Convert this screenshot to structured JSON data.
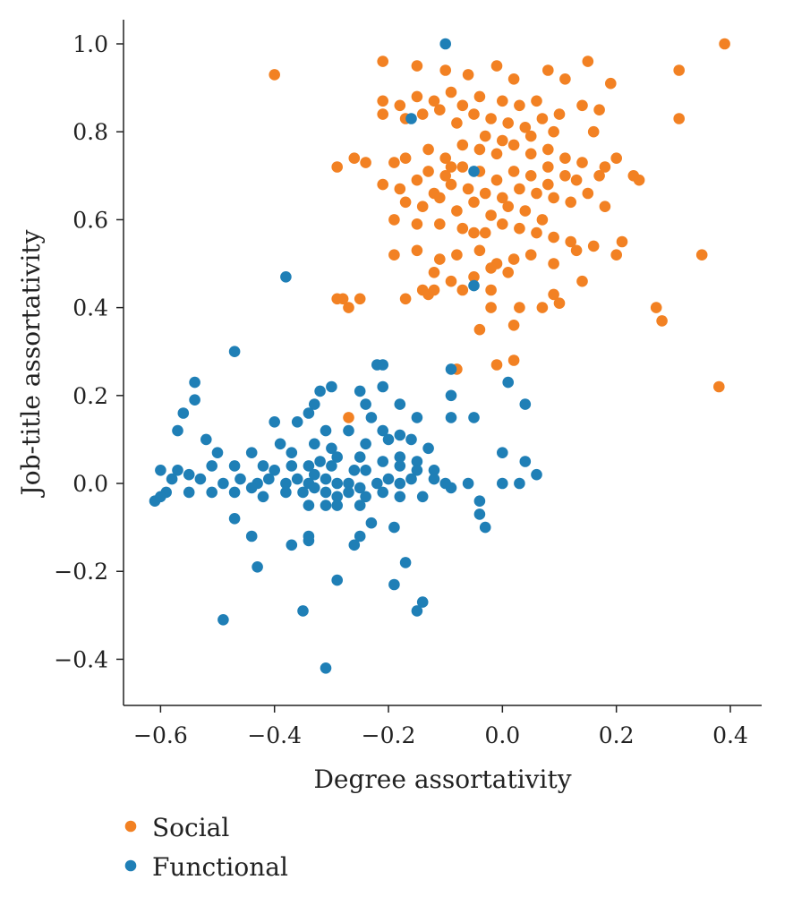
{
  "chart_data": {
    "type": "scatter",
    "title": "",
    "xlabel": "Degree assortativity",
    "ylabel": "Job-title assortativity",
    "xlim": [
      -0.665,
      0.455
    ],
    "ylim": [
      -0.505,
      1.055
    ],
    "xticks": [
      -0.6,
      -0.4,
      -0.2,
      0.0,
      0.2,
      0.4
    ],
    "xtick_labels": [
      "−0.6",
      "−0.4",
      "−0.2",
      "0.0",
      "0.2",
      "0.4"
    ],
    "yticks": [
      -0.4,
      -0.2,
      0.0,
      0.2,
      0.4,
      0.6,
      0.8,
      1.0
    ],
    "ytick_labels": [
      "−0.4",
      "−0.2",
      "0.0",
      "0.2",
      "0.4",
      "0.6",
      "0.8",
      "1.0"
    ],
    "grid": false,
    "legend_position": "below-left",
    "series": [
      {
        "name": "Social",
        "color": "#F28123",
        "points": [
          [
            0.39,
            1.0
          ],
          [
            -0.4,
            0.93
          ],
          [
            -0.21,
            0.96
          ],
          [
            0.31,
            0.94
          ],
          [
            -0.15,
            0.95
          ],
          [
            -0.1,
            0.94
          ],
          [
            -0.06,
            0.93
          ],
          [
            -0.01,
            0.95
          ],
          [
            0.02,
            0.92
          ],
          [
            0.08,
            0.94
          ],
          [
            0.11,
            0.92
          ],
          [
            0.15,
            0.96
          ],
          [
            0.19,
            0.91
          ],
          [
            -0.21,
            0.87
          ],
          [
            -0.18,
            0.86
          ],
          [
            -0.15,
            0.88
          ],
          [
            -0.12,
            0.87
          ],
          [
            -0.09,
            0.89
          ],
          [
            -0.07,
            0.86
          ],
          [
            -0.04,
            0.88
          ],
          [
            0.0,
            0.87
          ],
          [
            0.03,
            0.86
          ],
          [
            0.06,
            0.87
          ],
          [
            0.1,
            0.84
          ],
          [
            0.14,
            0.86
          ],
          [
            0.17,
            0.85
          ],
          [
            0.31,
            0.83
          ],
          [
            -0.21,
            0.84
          ],
          [
            -0.17,
            0.83
          ],
          [
            -0.14,
            0.84
          ],
          [
            -0.11,
            0.85
          ],
          [
            -0.08,
            0.82
          ],
          [
            -0.05,
            0.84
          ],
          [
            -0.02,
            0.83
          ],
          [
            0.01,
            0.82
          ],
          [
            0.04,
            0.81
          ],
          [
            0.07,
            0.83
          ],
          [
            0.09,
            0.8
          ],
          [
            -0.03,
            0.79
          ],
          [
            0.0,
            0.78
          ],
          [
            0.05,
            0.79
          ],
          [
            0.16,
            0.8
          ],
          [
            -0.13,
            0.76
          ],
          [
            -0.1,
            0.74
          ],
          [
            -0.07,
            0.77
          ],
          [
            -0.04,
            0.76
          ],
          [
            -0.01,
            0.75
          ],
          [
            0.02,
            0.77
          ],
          [
            0.05,
            0.75
          ],
          [
            0.08,
            0.76
          ],
          [
            0.11,
            0.74
          ],
          [
            0.14,
            0.73
          ],
          [
            0.18,
            0.72
          ],
          [
            0.2,
            0.74
          ],
          [
            -0.26,
            0.74
          ],
          [
            -0.24,
            0.73
          ],
          [
            -0.29,
            0.72
          ],
          [
            -0.17,
            0.74
          ],
          [
            -0.19,
            0.73
          ],
          [
            -0.13,
            0.71
          ],
          [
            -0.1,
            0.7
          ],
          [
            -0.07,
            0.72
          ],
          [
            -0.04,
            0.71
          ],
          [
            -0.01,
            0.69
          ],
          [
            0.02,
            0.71
          ],
          [
            0.05,
            0.7
          ],
          [
            0.08,
            0.72
          ],
          [
            0.11,
            0.7
          ],
          [
            0.13,
            0.69
          ],
          [
            0.17,
            0.7
          ],
          [
            0.23,
            0.7
          ],
          [
            0.24,
            0.69
          ],
          [
            -0.21,
            0.68
          ],
          [
            -0.18,
            0.67
          ],
          [
            -0.15,
            0.69
          ],
          [
            -0.12,
            0.66
          ],
          [
            -0.09,
            0.68
          ],
          [
            -0.06,
            0.67
          ],
          [
            -0.03,
            0.66
          ],
          [
            0.0,
            0.65
          ],
          [
            0.03,
            0.67
          ],
          [
            0.06,
            0.66
          ],
          [
            0.09,
            0.65
          ],
          [
            0.12,
            0.64
          ],
          [
            0.15,
            0.66
          ],
          [
            0.18,
            0.63
          ],
          [
            -0.17,
            0.64
          ],
          [
            -0.14,
            0.63
          ],
          [
            -0.11,
            0.65
          ],
          [
            -0.08,
            0.62
          ],
          [
            -0.05,
            0.64
          ],
          [
            -0.02,
            0.61
          ],
          [
            0.01,
            0.63
          ],
          [
            0.04,
            0.62
          ],
          [
            0.07,
            0.6
          ],
          [
            -0.19,
            0.6
          ],
          [
            -0.15,
            0.59
          ],
          [
            -0.11,
            0.59
          ],
          [
            -0.07,
            0.58
          ],
          [
            -0.03,
            0.57
          ],
          [
            0.0,
            0.59
          ],
          [
            0.03,
            0.58
          ],
          [
            0.06,
            0.57
          ],
          [
            0.09,
            0.56
          ],
          [
            0.12,
            0.55
          ],
          [
            -0.19,
            0.52
          ],
          [
            -0.15,
            0.53
          ],
          [
            -0.11,
            0.51
          ],
          [
            -0.08,
            0.52
          ],
          [
            -0.04,
            0.53
          ],
          [
            -0.01,
            0.5
          ],
          [
            0.02,
            0.51
          ],
          [
            0.05,
            0.52
          ],
          [
            0.09,
            0.5
          ],
          [
            0.13,
            0.53
          ],
          [
            0.16,
            0.54
          ],
          [
            0.2,
            0.52
          ],
          [
            0.21,
            0.55
          ],
          [
            0.35,
            0.52
          ],
          [
            -0.12,
            0.48
          ],
          [
            -0.09,
            0.46
          ],
          [
            -0.05,
            0.47
          ],
          [
            -0.02,
            0.49
          ],
          [
            0.01,
            0.48
          ],
          [
            0.14,
            0.46
          ],
          [
            -0.14,
            0.44
          ],
          [
            -0.07,
            0.44
          ],
          [
            -0.02,
            0.44
          ],
          [
            0.09,
            0.43
          ],
          [
            0.1,
            0.41
          ],
          [
            0.07,
            0.4
          ],
          [
            0.03,
            0.4
          ],
          [
            -0.28,
            0.42
          ],
          [
            -0.27,
            0.4
          ],
          [
            -0.25,
            0.42
          ],
          [
            -0.17,
            0.42
          ],
          [
            -0.13,
            0.43
          ],
          [
            -0.12,
            0.44
          ],
          [
            0.27,
            0.4
          ],
          [
            0.28,
            0.37
          ],
          [
            -0.04,
            0.35
          ],
          [
            -0.02,
            0.4
          ],
          [
            0.02,
            0.36
          ],
          [
            0.38,
            0.22
          ],
          [
            -0.08,
            0.26
          ],
          [
            -0.01,
            0.27
          ],
          [
            0.02,
            0.28
          ],
          [
            -0.27,
            0.15
          ],
          [
            -0.29,
            0.42
          ],
          [
            -0.05,
            0.57
          ],
          [
            -0.09,
            0.72
          ],
          [
            0.08,
            0.68
          ]
        ]
      },
      {
        "name": "Functional",
        "color": "#1F7FB6",
        "points": [
          [
            -0.1,
            1.0
          ],
          [
            -0.16,
            0.83
          ],
          [
            -0.05,
            0.71
          ],
          [
            -0.38,
            0.47
          ],
          [
            -0.05,
            0.45
          ],
          [
            -0.47,
            0.3
          ],
          [
            -0.22,
            0.27
          ],
          [
            -0.21,
            0.27
          ],
          [
            -0.09,
            0.26
          ],
          [
            -0.54,
            0.23
          ],
          [
            -0.3,
            0.22
          ],
          [
            -0.32,
            0.21
          ],
          [
            -0.25,
            0.21
          ],
          [
            -0.21,
            0.22
          ],
          [
            0.01,
            0.23
          ],
          [
            -0.54,
            0.19
          ],
          [
            -0.33,
            0.18
          ],
          [
            -0.24,
            0.18
          ],
          [
            -0.18,
            0.18
          ],
          [
            -0.09,
            0.2
          ],
          [
            0.04,
            0.18
          ],
          [
            -0.56,
            0.16
          ],
          [
            -0.34,
            0.16
          ],
          [
            -0.23,
            0.15
          ],
          [
            -0.15,
            0.15
          ],
          [
            -0.09,
            0.15
          ],
          [
            -0.05,
            0.15
          ],
          [
            -0.57,
            0.12
          ],
          [
            -0.36,
            0.14
          ],
          [
            -0.4,
            0.14
          ],
          [
            -0.31,
            0.12
          ],
          [
            -0.27,
            0.12
          ],
          [
            -0.21,
            0.12
          ],
          [
            -0.18,
            0.11
          ],
          [
            -0.52,
            0.1
          ],
          [
            -0.39,
            0.09
          ],
          [
            -0.33,
            0.09
          ],
          [
            -0.3,
            0.08
          ],
          [
            -0.24,
            0.09
          ],
          [
            -0.2,
            0.1
          ],
          [
            -0.16,
            0.1
          ],
          [
            -0.13,
            0.08
          ],
          [
            -0.5,
            0.07
          ],
          [
            -0.44,
            0.07
          ],
          [
            -0.37,
            0.07
          ],
          [
            -0.29,
            0.06
          ],
          [
            -0.25,
            0.06
          ],
          [
            -0.21,
            0.05
          ],
          [
            -0.18,
            0.06
          ],
          [
            -0.15,
            0.05
          ],
          [
            0.0,
            0.07
          ],
          [
            -0.6,
            0.03
          ],
          [
            -0.57,
            0.03
          ],
          [
            -0.51,
            0.04
          ],
          [
            -0.47,
            0.04
          ],
          [
            -0.42,
            0.04
          ],
          [
            -0.4,
            0.03
          ],
          [
            -0.37,
            0.04
          ],
          [
            -0.34,
            0.04
          ],
          [
            -0.32,
            0.05
          ],
          [
            -0.3,
            0.04
          ],
          [
            -0.26,
            0.03
          ],
          [
            -0.24,
            0.03
          ],
          [
            -0.18,
            0.04
          ],
          [
            -0.12,
            0.03
          ],
          [
            -0.15,
            0.03
          ],
          [
            0.04,
            0.05
          ],
          [
            0.06,
            0.02
          ],
          [
            -0.58,
            0.01
          ],
          [
            -0.55,
            0.02
          ],
          [
            -0.53,
            0.01
          ],
          [
            -0.49,
            0.0
          ],
          [
            -0.46,
            0.01
          ],
          [
            -0.43,
            0.0
          ],
          [
            -0.41,
            0.01
          ],
          [
            -0.38,
            0.0
          ],
          [
            -0.36,
            0.01
          ],
          [
            -0.34,
            0.0
          ],
          [
            -0.33,
            0.02
          ],
          [
            -0.31,
            0.01
          ],
          [
            -0.29,
            0.0
          ],
          [
            -0.27,
            0.0
          ],
          [
            -0.25,
            -0.01
          ],
          [
            -0.22,
            0.0
          ],
          [
            -0.2,
            0.01
          ],
          [
            -0.18,
            0.0
          ],
          [
            -0.16,
            0.01
          ],
          [
            -0.12,
            0.01
          ],
          [
            -0.1,
            0.0
          ],
          [
            -0.06,
            0.0
          ],
          [
            0.0,
            0.0
          ],
          [
            0.03,
            0.0
          ],
          [
            -0.61,
            -0.04
          ],
          [
            -0.59,
            -0.02
          ],
          [
            -0.55,
            -0.02
          ],
          [
            -0.51,
            -0.02
          ],
          [
            -0.47,
            -0.02
          ],
          [
            -0.44,
            -0.01
          ],
          [
            -0.42,
            -0.03
          ],
          [
            -0.38,
            -0.02
          ],
          [
            -0.35,
            -0.02
          ],
          [
            -0.33,
            -0.01
          ],
          [
            -0.31,
            -0.02
          ],
          [
            -0.29,
            -0.03
          ],
          [
            -0.27,
            -0.02
          ],
          [
            -0.24,
            -0.03
          ],
          [
            -0.21,
            -0.02
          ],
          [
            -0.18,
            -0.03
          ],
          [
            -0.14,
            -0.03
          ],
          [
            -0.09,
            -0.01
          ],
          [
            -0.04,
            -0.04
          ],
          [
            -0.6,
            -0.03
          ],
          [
            -0.34,
            -0.05
          ],
          [
            -0.31,
            -0.05
          ],
          [
            -0.29,
            -0.05
          ],
          [
            -0.25,
            -0.05
          ],
          [
            -0.04,
            -0.07
          ],
          [
            -0.03,
            -0.1
          ],
          [
            -0.47,
            -0.08
          ],
          [
            -0.23,
            -0.09
          ],
          [
            -0.19,
            -0.1
          ],
          [
            -0.44,
            -0.12
          ],
          [
            -0.34,
            -0.12
          ],
          [
            -0.25,
            -0.12
          ],
          [
            -0.26,
            -0.14
          ],
          [
            -0.37,
            -0.14
          ],
          [
            -0.34,
            -0.13
          ],
          [
            -0.43,
            -0.19
          ],
          [
            -0.17,
            -0.18
          ],
          [
            -0.29,
            -0.22
          ],
          [
            -0.19,
            -0.23
          ],
          [
            -0.14,
            -0.27
          ],
          [
            -0.15,
            -0.29
          ],
          [
            -0.35,
            -0.29
          ],
          [
            -0.49,
            -0.31
          ],
          [
            -0.31,
            -0.42
          ]
        ]
      }
    ]
  }
}
